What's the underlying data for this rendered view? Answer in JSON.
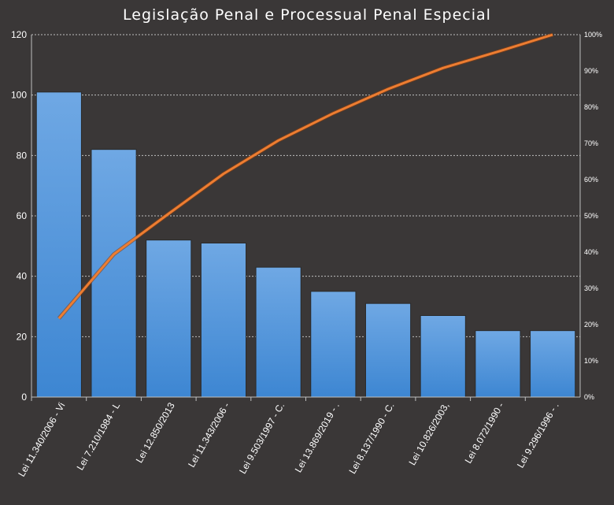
{
  "chart_data": {
    "type": "bar",
    "title": "Legislação Penal e Processual Penal Especial",
    "categories": [
      "Lei 11.340/2006 - Vi",
      "Lei 7.210/1984 - L",
      "Lei 12.850/2013",
      "Lei 11.343/2006 -",
      "Lei 9.503/1997 - C.",
      "Lei 13.869/2019 - .",
      "Lei 8.137/1990 - C.",
      "Lei 10.826/2003,",
      "Lei 8.072/1990 -",
      "Lei 9.296/1996 - ."
    ],
    "series": [
      {
        "type": "bar",
        "values": [
          101,
          82,
          52,
          51,
          43,
          35,
          31,
          27,
          22,
          22
        ],
        "color": "#4a8fd8"
      },
      {
        "type": "line",
        "axis": "secondary",
        "values": [
          0.217,
          0.394,
          0.506,
          0.616,
          0.708,
          0.783,
          0.85,
          0.908,
          0.953,
          1.0
        ],
        "color": "#ed7d31"
      }
    ],
    "ylim": [
      0,
      120
    ],
    "y_ticks": [
      "0",
      "20",
      "40",
      "60",
      "80",
      "100",
      "120"
    ],
    "y2lim": [
      0,
      1
    ],
    "y2_ticks": [
      "0%",
      "10%",
      "20%",
      "30%",
      "40%",
      "50%",
      "60%",
      "70%",
      "80%",
      "90%",
      "100%"
    ],
    "grid": true
  }
}
